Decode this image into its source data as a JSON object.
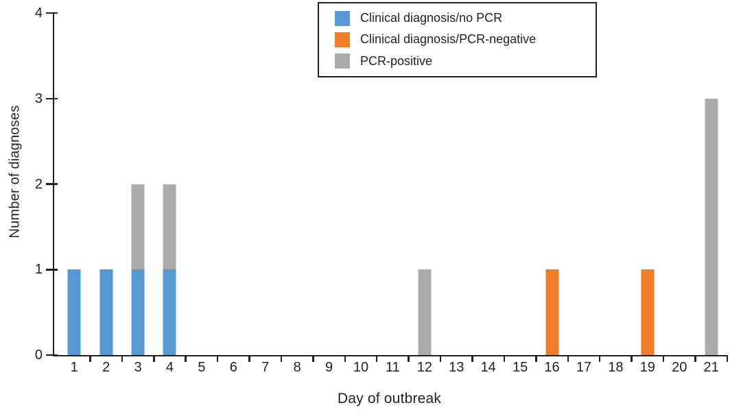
{
  "chart_data": {
    "type": "bar",
    "stacked": true,
    "title": "",
    "xlabel": "Day of outbreak",
    "ylabel": "Number of diagnoses",
    "categories": [
      "1",
      "2",
      "3",
      "4",
      "5",
      "6",
      "7",
      "8",
      "9",
      "10",
      "11",
      "12",
      "13",
      "14",
      "15",
      "16",
      "17",
      "18",
      "19",
      "20",
      "21"
    ],
    "series": [
      {
        "name": "Clinical diagnosis/no PCR",
        "color": "#5899d4",
        "values": [
          1,
          1,
          1,
          1,
          0,
          0,
          0,
          0,
          0,
          0,
          0,
          0,
          0,
          0,
          0,
          0,
          0,
          0,
          0,
          0,
          0
        ]
      },
      {
        "name": "Clinical diagnosis/PCR-negative",
        "color": "#ef7d29",
        "values": [
          0,
          0,
          0,
          0,
          0,
          0,
          0,
          0,
          0,
          0,
          0,
          0,
          0,
          0,
          0,
          1,
          0,
          0,
          1,
          0,
          0
        ]
      },
      {
        "name": "PCR-positive",
        "color": "#ababab",
        "values": [
          0,
          0,
          1,
          1,
          0,
          0,
          0,
          0,
          0,
          0,
          0,
          1,
          0,
          0,
          0,
          0,
          0,
          0,
          0,
          0,
          3
        ]
      }
    ],
    "ylim": [
      0,
      4
    ],
    "yticks": [
      0,
      1,
      2,
      3,
      4
    ],
    "legend_position": "top-center",
    "grid": false,
    "axis_color": "#231f20",
    "background_color": "#ffffff"
  }
}
